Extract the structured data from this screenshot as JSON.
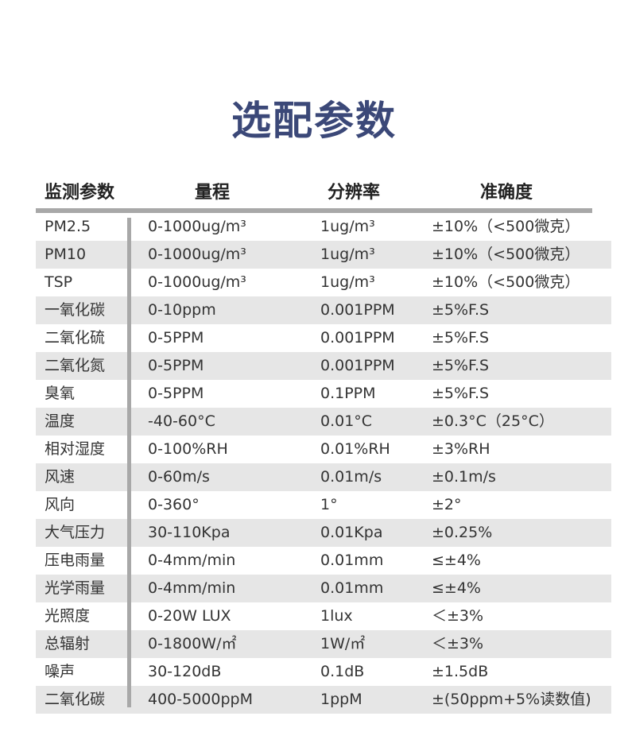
{
  "title": "选配参数",
  "headers": [
    "监测参数",
    "量程",
    "分辨率",
    "准确度"
  ],
  "rows": [
    [
      "PM2.5",
      "0-1000ug/m³",
      "1ug/m³",
      "±10%（<500微克）"
    ],
    [
      "PM10",
      "0-1000ug/m³",
      "1ug/m³",
      "±10%（<500微克）"
    ],
    [
      "TSP",
      "0-1000ug/m³",
      "1ug/m³",
      "±10%（<500微克）"
    ],
    [
      "一氧化碳",
      "0-10ppm",
      "0.001PPM",
      "±5%F.S"
    ],
    [
      "二氧化硫",
      "0-5PPM",
      "0.001PPM",
      "±5%F.S"
    ],
    [
      "二氧化氮",
      "0-5PPM",
      "0.001PPM",
      "±5%F.S"
    ],
    [
      "臭氧",
      "0-5PPM",
      "0.1PPM",
      "±5%F.S"
    ],
    [
      "温度",
      "-40-60°C",
      "0.01°C",
      "±0.3°C（25°C）"
    ],
    [
      "相对湿度",
      "0-100%RH",
      "0.01%RH",
      "±3%RH"
    ],
    [
      "风速",
      "0-60m/s",
      "0.01m/s",
      "±0.1m/s"
    ],
    [
      "风向",
      "0-360°",
      "1°",
      "±2°"
    ],
    [
      "大气压力",
      "30-110Kpa",
      "0.01Kpa",
      "±0.25%"
    ],
    [
      "压电雨量",
      "0-4mm/min",
      "0.01mm",
      "≤±4%"
    ],
    [
      "光学雨量",
      "0-4mm/min",
      "0.01mm",
      "≤±4%"
    ],
    [
      "光照度",
      "0-20W LUX",
      "1lux",
      "＜±3%"
    ],
    [
      "总辐射",
      "0-1800W/㎡",
      "1W/㎡",
      "＜±3%"
    ],
    [
      "噪声",
      "30-120dB",
      "0.1dB",
      "±1.5dB"
    ],
    [
      "二氧化碳",
      "400-5000ppM",
      "1ppM",
      "±(50ppm+5%读数值)"
    ]
  ]
}
